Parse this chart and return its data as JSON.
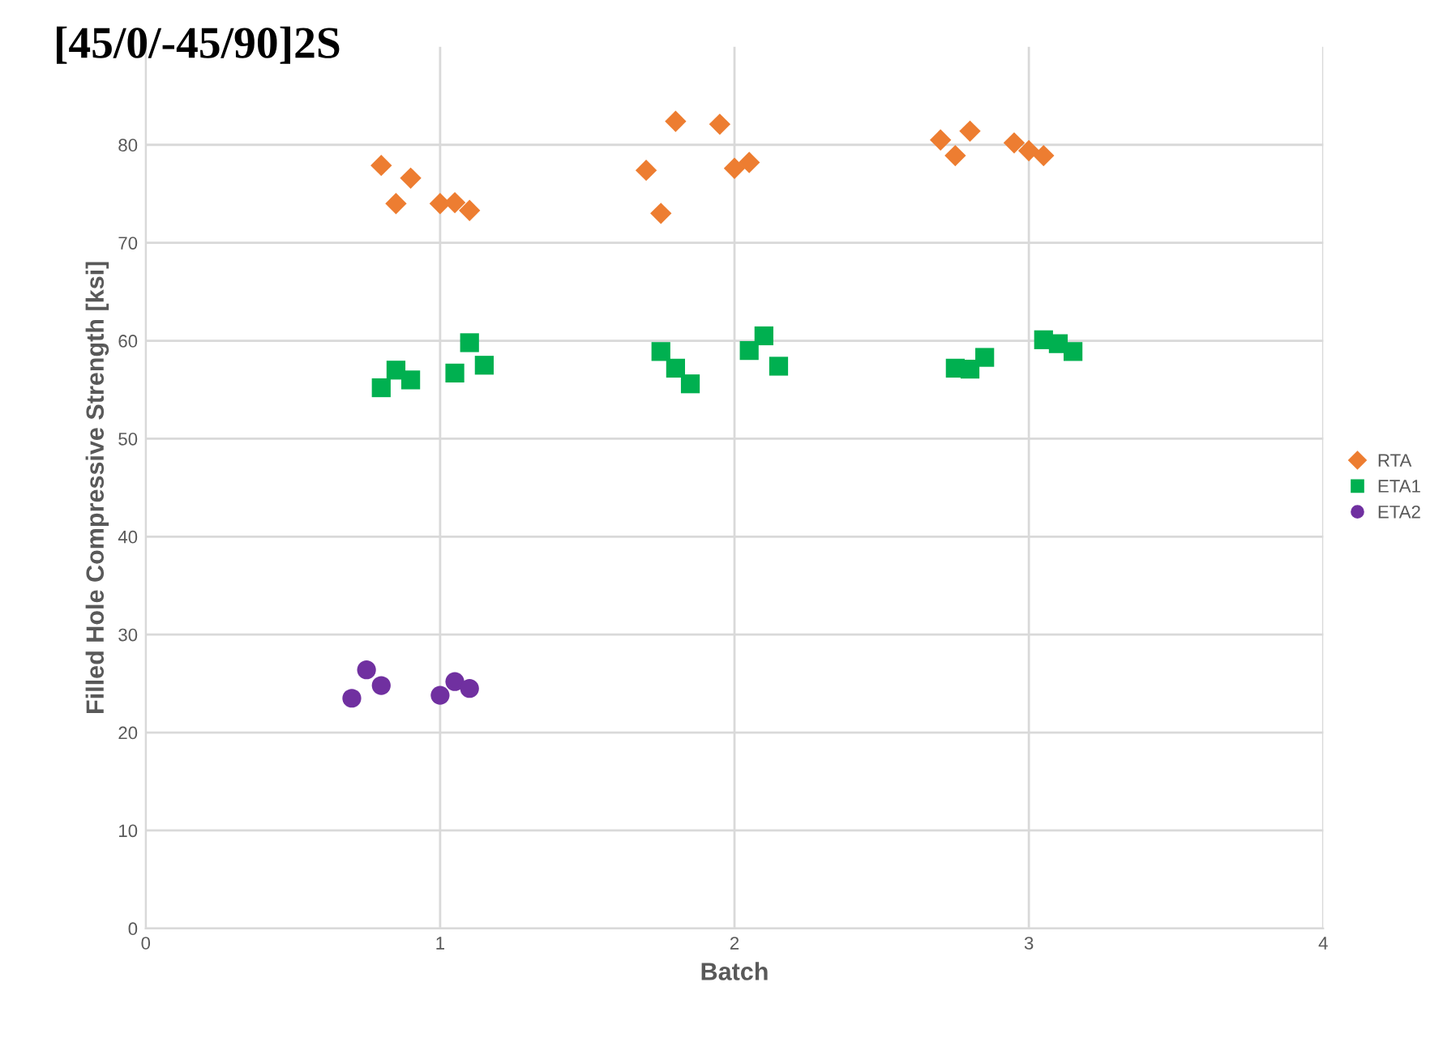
{
  "chart_data": {
    "type": "scatter",
    "title": "[45/0/-45/90]2S",
    "xlabel": "Batch",
    "ylabel": "Filled Hole Compressive Strength [ksi]",
    "xlim": [
      0,
      4
    ],
    "xticks": [
      0,
      1,
      2,
      3,
      4
    ],
    "ylim": [
      0,
      90
    ],
    "yticks": [
      0,
      10,
      20,
      30,
      40,
      50,
      60,
      70,
      80
    ],
    "grid": true,
    "legend": "right",
    "series": [
      {
        "name": "RTA",
        "color": "#ed7d31",
        "marker": "diamond",
        "x": [
          0.8,
          0.85,
          0.9,
          1.0,
          1.05,
          1.1,
          1.7,
          1.75,
          1.8,
          1.95,
          2.0,
          2.05,
          2.7,
          2.75,
          2.8,
          2.95,
          3.0,
          3.05
        ],
        "values": [
          77.9,
          74.0,
          76.6,
          74.0,
          74.1,
          73.3,
          77.4,
          73.0,
          82.4,
          82.1,
          77.6,
          78.2,
          80.5,
          78.9,
          81.4,
          80.2,
          79.4,
          78.9
        ]
      },
      {
        "name": "ETA1",
        "color": "#00b050",
        "marker": "square",
        "x": [
          0.8,
          0.85,
          0.9,
          1.05,
          1.1,
          1.15,
          1.75,
          1.8,
          1.85,
          2.05,
          2.1,
          2.15,
          2.75,
          2.8,
          2.85,
          3.05,
          3.1,
          3.15
        ],
        "values": [
          55.2,
          57.0,
          56.0,
          56.7,
          59.8,
          57.5,
          58.9,
          57.2,
          55.6,
          59.0,
          60.5,
          57.4,
          57.2,
          57.1,
          58.3,
          60.1,
          59.7,
          58.9
        ]
      },
      {
        "name": "ETA2",
        "color": "#7030a0",
        "marker": "circle",
        "x": [
          0.7,
          0.75,
          0.8,
          1.0,
          1.05,
          1.1
        ],
        "values": [
          23.5,
          26.4,
          24.8,
          23.8,
          25.2,
          24.5
        ]
      }
    ]
  }
}
